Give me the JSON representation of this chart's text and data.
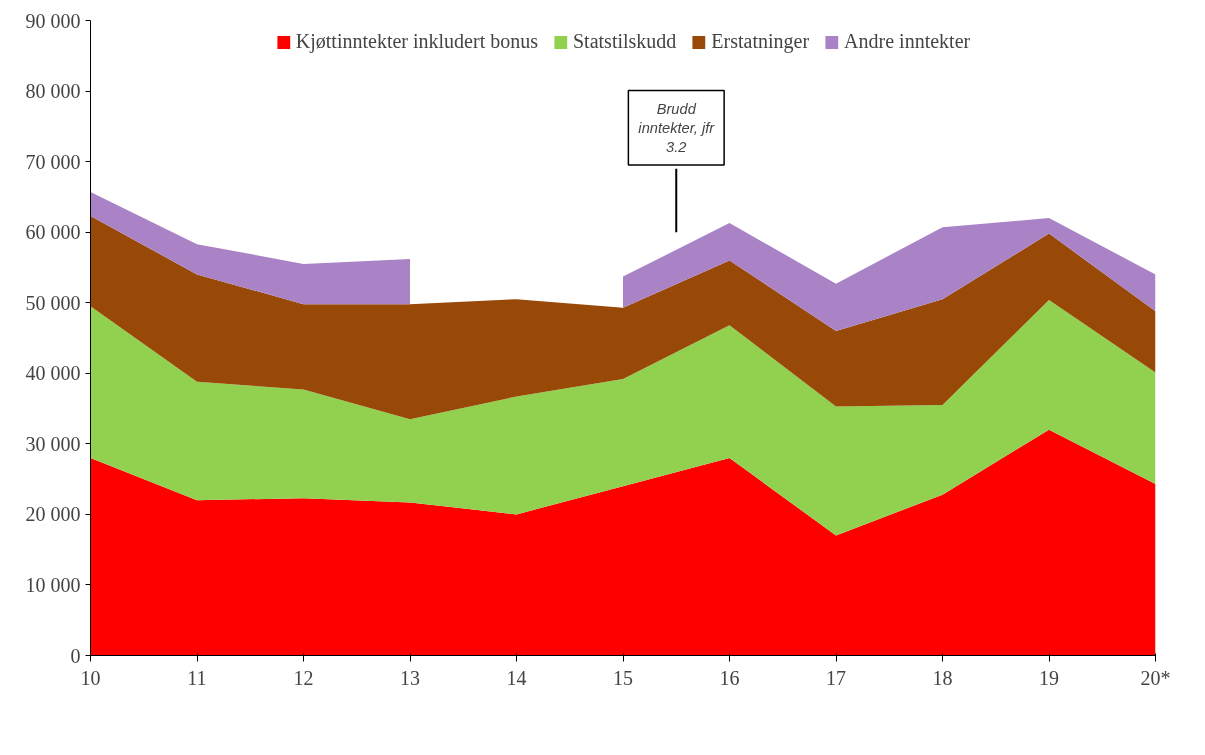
{
  "chart_data": {
    "type": "area",
    "stacked": true,
    "categories": [
      "10",
      "11",
      "12",
      "13",
      "14",
      "15",
      "16",
      "17",
      "18",
      "19",
      "20*"
    ],
    "series": [
      {
        "name": "Kjøttinntekter inkludert bonus",
        "color": "#ff0000",
        "values": [
          28000,
          22000,
          22300,
          21700,
          20000,
          24000,
          28000,
          17000,
          22800,
          32000,
          24300
        ]
      },
      {
        "name": "Statstilskudd",
        "color": "#92d050",
        "values": [
          21500,
          16800,
          15400,
          11800,
          16700,
          15200,
          18800,
          18300,
          12700,
          18400,
          15800
        ]
      },
      {
        "name": "Erstatninger",
        "color": "#984807",
        "values": [
          12800,
          15200,
          12100,
          16300,
          13800,
          10100,
          9200,
          10700,
          15000,
          9400,
          8700
        ]
      },
      {
        "name": "Andre inntekter",
        "color": "#a983c6",
        "values": [
          3400,
          4300,
          5700,
          6400,
          null,
          4400,
          5300,
          6700,
          10200,
          2200,
          5200
        ]
      }
    ],
    "ylim": [
      0,
      90000
    ],
    "yticks": [
      {
        "value": 0,
        "label": "0"
      },
      {
        "value": 10000,
        "label": "10 000"
      },
      {
        "value": 20000,
        "label": "20 000"
      },
      {
        "value": 30000,
        "label": "30 000"
      },
      {
        "value": 40000,
        "label": "40 000"
      },
      {
        "value": 50000,
        "label": "50 000"
      },
      {
        "value": 60000,
        "label": "60 000"
      },
      {
        "value": 70000,
        "label": "70 000"
      },
      {
        "value": 80000,
        "label": "80 000"
      },
      {
        "value": 90000,
        "label": "90 000"
      }
    ],
    "annotations": [
      "Brudd inntekter, jfr 3.2"
    ],
    "legend": "top",
    "grid": false
  }
}
